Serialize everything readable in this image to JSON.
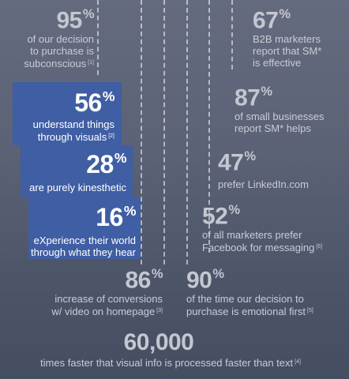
{
  "stats": {
    "s95": {
      "number": "95",
      "unit": "%",
      "lines": [
        "of our decision",
        "to purchase is",
        "subconscious"
      ],
      "ref": "[1]"
    },
    "s67": {
      "number": "67",
      "unit": "%",
      "lines": [
        "B2B marketers",
        "report that SM*",
        "is effective"
      ]
    },
    "s56": {
      "number": "56",
      "unit": "%",
      "lines": [
        "understand things",
        "through visuals"
      ],
      "ref": "[2]"
    },
    "s87": {
      "number": "87",
      "unit": "%",
      "lines": [
        "of small businesses",
        "report SM* helps"
      ]
    },
    "s28": {
      "number": "28",
      "unit": "%",
      "lines": [
        "are purely kinesthetic"
      ]
    },
    "s47": {
      "number": "47",
      "unit": "%",
      "lines": [
        "prefer LinkedIn.com"
      ]
    },
    "s16": {
      "number": "16",
      "unit": "%",
      "lines": [
        "eXperience their world",
        "through what they hear"
      ]
    },
    "s52": {
      "number": "52",
      "unit": "%",
      "lines": [
        "of all marketers prefer",
        "Facebook for messaging"
      ],
      "ref": "[6]"
    },
    "s86": {
      "number": "86",
      "unit": "%",
      "lines": [
        "increase of conversions",
        "w/ video on homepage"
      ],
      "ref": "[3]"
    },
    "s90": {
      "number": "90",
      "unit": "%",
      "lines": [
        "of the time our decision to",
        "purchase is emotional first"
      ],
      "ref": "[5]"
    },
    "s60k": {
      "number": "60,000",
      "lines": [
        "times faster that visual info is processed faster than text"
      ],
      "ref": "[4]"
    }
  },
  "colors": {
    "accent": "#3f5ea3",
    "text": "#c9ccd6",
    "background": "#5b6275"
  }
}
